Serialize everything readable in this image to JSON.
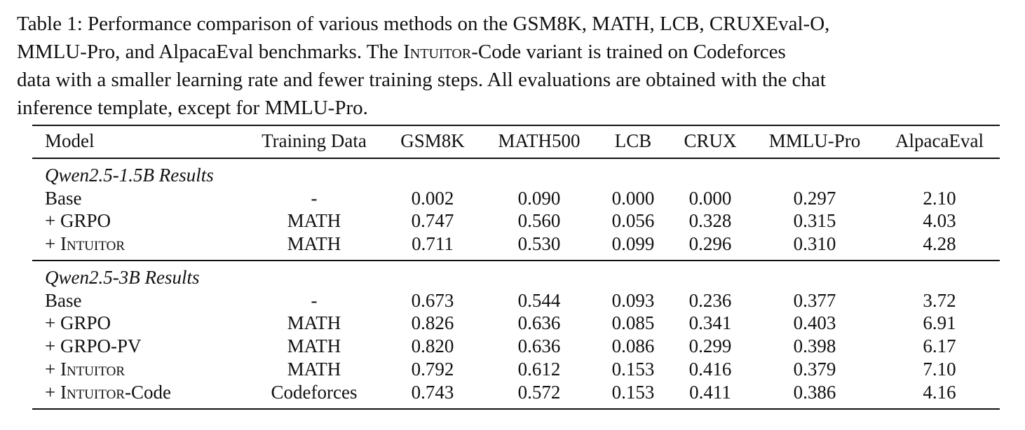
{
  "caption": {
    "line1": "Table 1: Performance comparison of various methods on the GSM8K, MATH, LCB, CRUXEval-O,",
    "line2a": "MMLU-Pro, and AlpacaEval benchmarks. The ",
    "line2_sc": "Intuitor",
    "line2b": "-Code variant is trained on Codeforces",
    "line3": "data with a smaller learning rate and fewer training steps. All evaluations are obtained with the chat",
    "line4": "inference template, except for MMLU-Pro."
  },
  "headers": [
    "Model",
    "Training Data",
    "GSM8K",
    "MATH500",
    "LCB",
    "CRUX",
    "MMLU-Pro",
    "AlpacaEval"
  ],
  "groups": [
    {
      "title": "Qwen2.5-1.5B Results",
      "rows": [
        {
          "prefix": "Base",
          "sc": "",
          "suffix": "",
          "data": "-",
          "gsm": "0.002",
          "math": "0.090",
          "lcb": "0.000",
          "crux": "0.000",
          "mmlu": "0.297",
          "alpaca": "2.10"
        },
        {
          "prefix": "+ GRPO",
          "sc": "",
          "suffix": "",
          "data": "MATH",
          "gsm": "0.747",
          "math": "0.560",
          "lcb": "0.056",
          "crux": "0.328",
          "mmlu": "0.315",
          "alpaca": "4.03"
        },
        {
          "prefix": "+ ",
          "sc": "Intuitor",
          "suffix": "",
          "data": "MATH",
          "gsm": "0.711",
          "math": "0.530",
          "lcb": "0.099",
          "crux": "0.296",
          "mmlu": "0.310",
          "alpaca": "4.28"
        }
      ]
    },
    {
      "title": "Qwen2.5-3B Results",
      "rows": [
        {
          "prefix": "Base",
          "sc": "",
          "suffix": "",
          "data": "-",
          "gsm": "0.673",
          "math": "0.544",
          "lcb": "0.093",
          "crux": "0.236",
          "mmlu": "0.377",
          "alpaca": "3.72"
        },
        {
          "prefix": "+ GRPO",
          "sc": "",
          "suffix": "",
          "data": "MATH",
          "gsm": "0.826",
          "math": "0.636",
          "lcb": "0.085",
          "crux": "0.341",
          "mmlu": "0.403",
          "alpaca": "6.91"
        },
        {
          "prefix": "+ GRPO-PV",
          "sc": "",
          "suffix": "",
          "data": "MATH",
          "gsm": "0.820",
          "math": "0.636",
          "lcb": "0.086",
          "crux": "0.299",
          "mmlu": "0.398",
          "alpaca": "6.17"
        },
        {
          "prefix": "+ ",
          "sc": "Intuitor",
          "suffix": "",
          "data": "MATH",
          "gsm": "0.792",
          "math": "0.612",
          "lcb": "0.153",
          "crux": "0.416",
          "mmlu": "0.379",
          "alpaca": "7.10"
        },
        {
          "prefix": "+ ",
          "sc": "Intuitor",
          "suffix": "-Code",
          "data": "Codeforces",
          "gsm": "0.743",
          "math": "0.572",
          "lcb": "0.153",
          "crux": "0.411",
          "mmlu": "0.386",
          "alpaca": "4.16"
        }
      ]
    }
  ]
}
